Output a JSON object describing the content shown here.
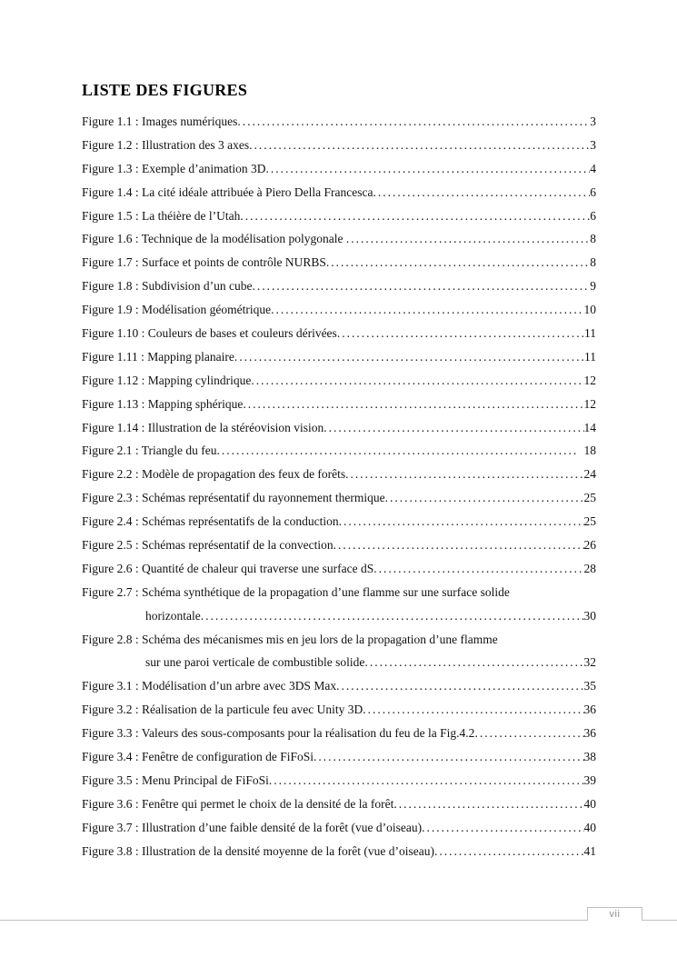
{
  "document": {
    "title": "LISTE DES FIGURES",
    "footer": {
      "page_number": "vii"
    }
  },
  "figures_list": {
    "rows": [
      {
        "text": "Figure 1.1 : Images numériques",
        "page": "3",
        "indent": false
      },
      {
        "text": "Figure 1.2 : Illustration des 3 axes",
        "page": "3",
        "indent": false
      },
      {
        "text": "Figure 1.3 : Exemple d’animation 3D",
        "page": "4",
        "indent": false
      },
      {
        "text": "Figure 1.4 : La cité idéale attribuée à Piero Della Francesca",
        "page": "6",
        "indent": false
      },
      {
        "text": "Figure 1.5 : La théière de l’Utah",
        "page": "6",
        "indent": false
      },
      {
        "text": "Figure 1.6 : Technique de la modélisation polygonale ",
        "page": "8",
        "indent": false
      },
      {
        "text": "Figure 1.7 : Surface et points de contrôle NURBS",
        "page": "8",
        "indent": false
      },
      {
        "text": "Figure 1.8 : Subdivision d’un cube",
        "page": "9",
        "indent": false
      },
      {
        "text": "Figure 1.9 : Modélisation géométrique",
        "page": "10",
        "indent": false
      },
      {
        "text": "Figure 1.10 : Couleurs de bases et couleurs dérivées",
        "page": "11",
        "indent": false
      },
      {
        "text": "Figure 1.11 : Mapping planaire",
        "page": "11",
        "indent": false
      },
      {
        "text": "Figure 1.12 : Mapping cylindrique",
        "page": "12",
        "indent": false
      },
      {
        "text": "Figure 1.13 : Mapping sphérique",
        "page": "12",
        "indent": false
      },
      {
        "text": "Figure 1.14 : Illustration de la stéréovision vision",
        "page": "14",
        "indent": false
      },
      {
        "text": "Figure 2.1 : Triangle du feu",
        "page": "  18",
        "indent": false
      },
      {
        "text": "Figure 2.2 : Modèle de propagation des feux de forêts",
        "page": "24",
        "indent": false
      },
      {
        "text": "Figure 2.3 : Schémas représentatif du rayonnement thermique",
        "page": "25",
        "indent": false
      },
      {
        "text": "Figure 2.4 : Schémas représentatifs de la conduction",
        "page": "25",
        "indent": false
      },
      {
        "text": "Figure 2.5 : Schémas représentatif de la convection",
        "page": "26",
        "indent": false
      },
      {
        "text": "Figure 2.6 : Quantité de chaleur qui traverse une surface dS",
        "page": "28",
        "indent": false
      },
      {
        "text": "Figure 2.7 : Schéma synthétique de la propagation d’une flamme sur une surface solide",
        "page": "",
        "indent": false
      },
      {
        "text": "horizontale",
        "page": "30",
        "indent": true
      },
      {
        "text": "Figure 2.8 : Schéma des mécanismes mis en jeu lors de la propagation d’une flamme",
        "page": "",
        "indent": false
      },
      {
        "text": "sur une paroi verticale de combustible solide",
        "page": "32",
        "indent": true
      },
      {
        "text": "Figure 3.1 : Modélisation d’un arbre avec 3DS Max",
        "page": "35",
        "indent": false
      },
      {
        "text": "Figure 3.2 : Réalisation de la particule feu avec Unity 3D",
        "page": "36",
        "indent": false
      },
      {
        "text": "Figure 3.3 : Valeurs des sous-composants pour la réalisation du feu de la Fig.4.2",
        "page": "36",
        "indent": false
      },
      {
        "text": "Figure 3.4 : Fenêtre de configuration de FiFoSi",
        "page": "38",
        "indent": false
      },
      {
        "text": "Figure 3.5 : Menu Principal de FiFoSi",
        "page": "39",
        "indent": false
      },
      {
        "text": "Figure 3.6 : Fenêtre qui permet le choix de la densité de la forêt",
        "page": "40",
        "indent": false
      },
      {
        "text": "Figure 3.7 : Illustration d’une faible densité de la forêt (vue d’oiseau)",
        "page": "40",
        "indent": false
      },
      {
        "text": "Figure 3.8 : Illustration de la densité moyenne de la forêt (vue d’oiseau)",
        "page": "41",
        "indent": false
      }
    ]
  }
}
